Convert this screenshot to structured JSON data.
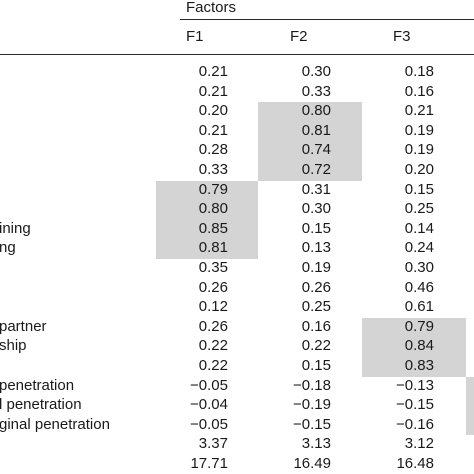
{
  "header": {
    "group_label": "Factors",
    "columns": [
      "F1",
      "F2",
      "F3"
    ]
  },
  "rows": [
    {
      "label": "",
      "values": [
        "0.21",
        "0.30",
        "0.18"
      ]
    },
    {
      "label": "",
      "values": [
        "0.21",
        "0.33",
        "0.16"
      ]
    },
    {
      "label": "",
      "values": [
        "0.20",
        "0.80",
        "0.21"
      ]
    },
    {
      "label": "",
      "values": [
        "0.21",
        "0.81",
        "0.19"
      ]
    },
    {
      "label": "",
      "values": [
        "0.28",
        "0.74",
        "0.19"
      ]
    },
    {
      "label": "",
      "values": [
        "0.33",
        "0.72",
        "0.20"
      ]
    },
    {
      "label": "",
      "values": [
        "0.79",
        "0.31",
        "0.15"
      ]
    },
    {
      "label": "",
      "values": [
        "0.80",
        "0.30",
        "0.25"
      ]
    },
    {
      "label": "ining",
      "values": [
        "0.85",
        "0.15",
        "0.14"
      ]
    },
    {
      "label": "ng",
      "values": [
        "0.81",
        "0.13",
        "0.24"
      ]
    },
    {
      "label": "",
      "values": [
        "0.35",
        "0.19",
        "0.30"
      ]
    },
    {
      "label": "",
      "values": [
        "0.26",
        "0.26",
        "0.46"
      ]
    },
    {
      "label": "",
      "values": [
        "0.12",
        "0.25",
        "0.61"
      ]
    },
    {
      "label": "partner",
      "values": [
        "0.26",
        "0.16",
        "0.79"
      ]
    },
    {
      "label": "ship",
      "values": [
        "0.22",
        "0.22",
        "0.84"
      ]
    },
    {
      "label": "",
      "values": [
        "0.22",
        "0.15",
        "0.83"
      ]
    },
    {
      "label": "penetration",
      "values": [
        "−0.05",
        "−0.18",
        "−0.13"
      ]
    },
    {
      "label": "l penetration",
      "values": [
        "−0.04",
        "−0.19",
        "−0.15"
      ]
    },
    {
      "label": "ginal penetration",
      "values": [
        "−0.05",
        "−0.15",
        "−0.16"
      ]
    },
    {
      "label": "",
      "values": [
        "3.37",
        "3.13",
        "3.12"
      ]
    },
    {
      "label": "",
      "values": [
        "17.71",
        "16.49",
        "16.48"
      ]
    }
  ],
  "highlights": [
    {
      "column": 1,
      "from_row": 2,
      "to_row": 5
    },
    {
      "column": 0,
      "from_row": 6,
      "to_row": 9
    },
    {
      "column": 2,
      "from_row": 13,
      "to_row": 15
    },
    {
      "column": 3,
      "from_row": 16,
      "to_row": 18
    }
  ],
  "colors": {
    "highlight": "#d4d4d4",
    "rule": "#2a2a2a",
    "text": "#1a1a1a"
  }
}
